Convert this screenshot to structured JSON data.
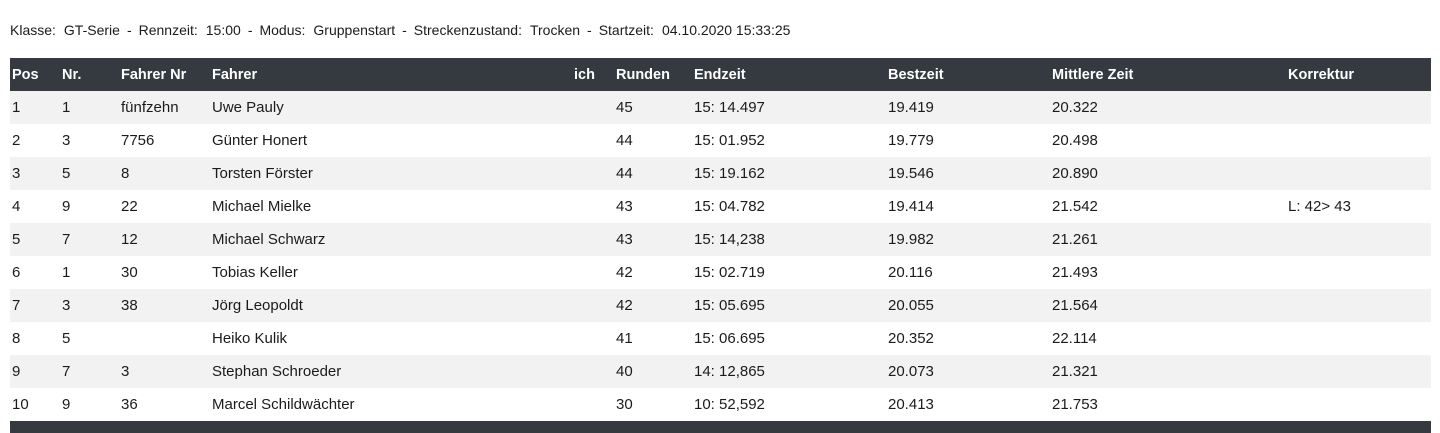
{
  "meta": {
    "separator": "-",
    "items": [
      {
        "label": "Klasse:",
        "value": "GT-Serie"
      },
      {
        "label": "Rennzeit:",
        "value": "15:00"
      },
      {
        "label": "Modus:",
        "value": "Gruppenstart"
      },
      {
        "label": "Streckenzustand:",
        "value": "Trocken"
      },
      {
        "label": "Startzeit:",
        "value": "04.10.2020 15:33:25"
      }
    ]
  },
  "table": {
    "columns": [
      "Pos",
      "Nr.",
      "Fahrer Nr",
      "Fahrer",
      "ich",
      "Runden",
      "Endzeit",
      "Bestzeit",
      "Mittlere Zeit",
      "Korrektur"
    ],
    "rows": [
      [
        "1",
        "1",
        "fünfzehn",
        "Uwe Pauly",
        "",
        "45",
        "15: 14.497",
        "19.419",
        "20.322",
        ""
      ],
      [
        "2",
        "3",
        "7756",
        "Günter Honert",
        "",
        "44",
        "15: 01.952",
        "19.779",
        "20.498",
        ""
      ],
      [
        "3",
        "5",
        "8",
        "Torsten Förster",
        "",
        "44",
        "15: 19.162",
        "19.546",
        "20.890",
        ""
      ],
      [
        "4",
        "9",
        "22",
        "Michael Mielke",
        "",
        "43",
        "15: 04.782",
        "19.414",
        "21.542",
        "L: 42> 43"
      ],
      [
        "5",
        "7",
        "12",
        "Michael Schwarz",
        "",
        "43",
        "15: 14,238",
        "19.982",
        "21.261",
        ""
      ],
      [
        "6",
        "1",
        "30",
        "Tobias Keller",
        "",
        "42",
        "15: 02.719",
        "20.116",
        "21.493",
        ""
      ],
      [
        "7",
        "3",
        "38",
        "Jörg Leopoldt",
        "",
        "42",
        "15: 05.695",
        "20.055",
        "21.564",
        ""
      ],
      [
        "8",
        "5",
        "",
        "Heiko Kulik",
        "",
        "41",
        "15: 06.695",
        "20.352",
        "22.114",
        ""
      ],
      [
        "9",
        "7",
        "3",
        "Stephan Schroeder",
        "",
        "40",
        "14: 12,865",
        "20.073",
        "21.321",
        ""
      ],
      [
        "10",
        "9",
        "36",
        "Marcel Schildwächter",
        "",
        "30",
        "10: 52,592",
        "20.413",
        "21.753",
        ""
      ]
    ]
  },
  "colors": {
    "header_bg": "#343a40",
    "header_text": "#ffffff",
    "stripe_bg": "#f2f2f2"
  }
}
